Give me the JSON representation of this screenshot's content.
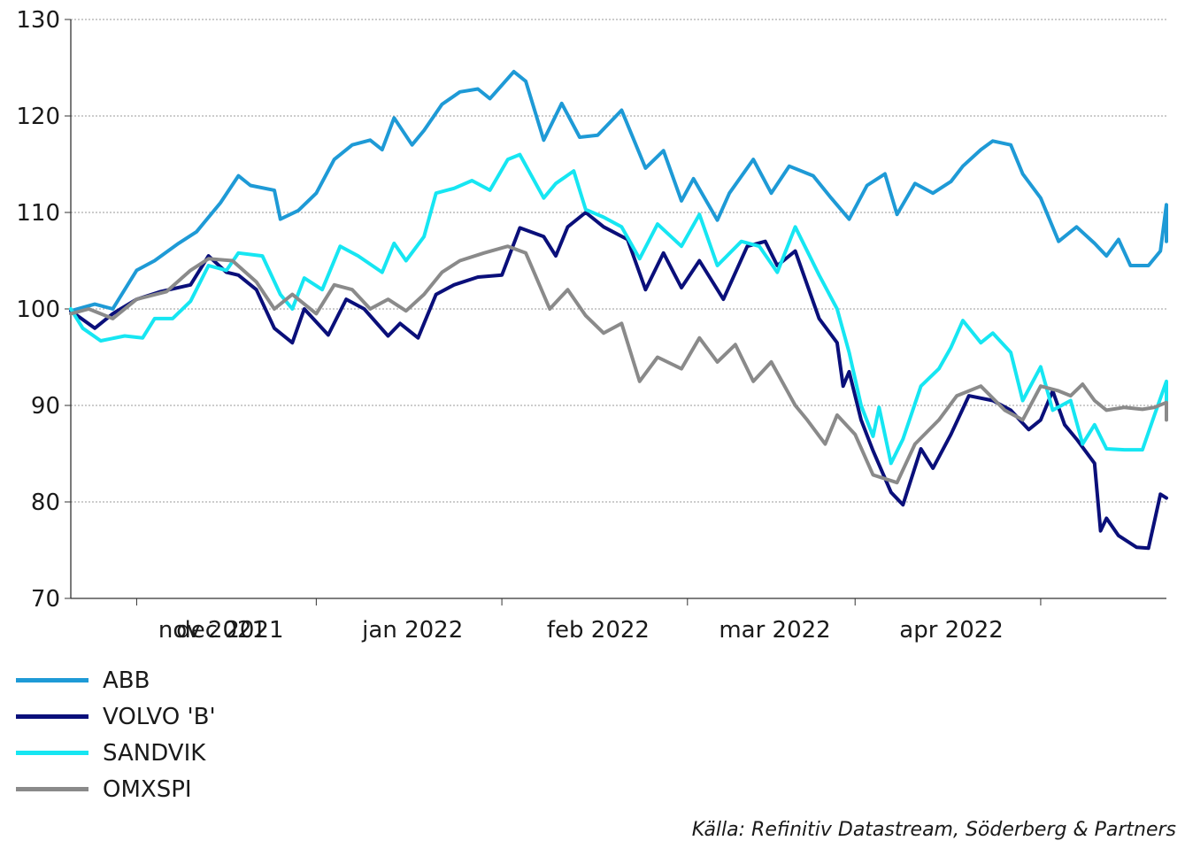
{
  "chart_data": {
    "type": "line",
    "ylim": [
      70,
      130
    ],
    "yticks": [
      "70",
      "80",
      "90",
      "100",
      "110",
      "120",
      "130"
    ],
    "month_labels": [
      "nov 2021",
      "dec 2021",
      "jan 2022",
      "feb 2022",
      "mar 2022",
      "apr 2022"
    ],
    "grid": "horizontal, dotted",
    "legend": "bottom-left",
    "x_start": "2021-10-21",
    "x_end": "2022-04-22",
    "series": [
      {
        "name": "ABB",
        "color": "#1e9ad6",
        "points": [
          [
            "2021-10-21",
            99.8
          ],
          [
            "2021-10-25",
            100.5
          ],
          [
            "2021-10-28",
            100.0
          ],
          [
            "2021-11-01",
            104.0
          ],
          [
            "2021-11-04",
            105.0
          ],
          [
            "2021-11-08",
            106.8
          ],
          [
            "2021-11-11",
            108.0
          ],
          [
            "2021-11-15",
            111.0
          ],
          [
            "2021-11-18",
            113.8
          ],
          [
            "2021-11-20",
            112.8
          ],
          [
            "2021-11-24",
            112.3
          ],
          [
            "2021-11-25",
            109.3
          ],
          [
            "2021-11-28",
            110.2
          ],
          [
            "2021-12-01",
            112.0
          ],
          [
            "2021-12-04",
            115.5
          ],
          [
            "2021-12-07",
            117.0
          ],
          [
            "2021-12-10",
            117.5
          ],
          [
            "2021-12-12",
            116.5
          ],
          [
            "2021-12-14",
            119.8
          ],
          [
            "2021-12-17",
            117.0
          ],
          [
            "2021-12-19",
            118.5
          ],
          [
            "2021-12-22",
            121.2
          ],
          [
            "2021-12-25",
            122.5
          ],
          [
            "2021-12-28",
            122.8
          ],
          [
            "2021-12-30",
            121.8
          ],
          [
            "2022-01-03",
            124.6
          ],
          [
            "2022-01-05",
            123.6
          ],
          [
            "2022-01-08",
            117.5
          ],
          [
            "2022-01-11",
            121.3
          ],
          [
            "2022-01-14",
            117.8
          ],
          [
            "2022-01-17",
            118.0
          ],
          [
            "2022-01-21",
            120.6
          ],
          [
            "2022-01-25",
            114.6
          ],
          [
            "2022-01-28",
            116.4
          ],
          [
            "2022-01-31",
            111.2
          ],
          [
            "2022-02-02",
            113.5
          ],
          [
            "2022-02-06",
            109.2
          ],
          [
            "2022-02-08",
            112.0
          ],
          [
            "2022-02-12",
            115.5
          ],
          [
            "2022-02-15",
            112.0
          ],
          [
            "2022-02-18",
            114.8
          ],
          [
            "2022-02-22",
            113.8
          ],
          [
            "2022-02-25",
            111.5
          ],
          [
            "2022-02-28",
            109.3
          ],
          [
            "2022-03-03",
            112.8
          ],
          [
            "2022-03-06",
            114.0
          ],
          [
            "2022-03-08",
            109.8
          ],
          [
            "2022-03-11",
            113.0
          ],
          [
            "2022-03-14",
            112.0
          ],
          [
            "2022-03-17",
            113.2
          ],
          [
            "2022-03-19",
            114.8
          ],
          [
            "2022-03-22",
            116.5
          ],
          [
            "2022-03-24",
            117.4
          ],
          [
            "2022-03-27",
            117.0
          ],
          [
            "2022-03-29",
            114.0
          ],
          [
            "2022-04-01",
            111.5
          ],
          [
            "2022-04-04",
            107.0
          ],
          [
            "2022-04-07",
            108.5
          ],
          [
            "2022-04-10",
            106.8
          ],
          [
            "2022-04-12",
            105.5
          ],
          [
            "2022-04-14",
            107.2
          ],
          [
            "2022-04-16",
            104.5
          ],
          [
            "2022-04-19",
            104.5
          ],
          [
            "2022-04-21",
            106.0
          ],
          [
            "2022-04-22",
            110.8
          ],
          [
            "2022-04-22",
            107.0
          ]
        ]
      },
      {
        "name": "VOLVO 'B'",
        "color": "#0a0f7a",
        "points": [
          [
            "2021-10-21",
            99.8
          ],
          [
            "2021-10-25",
            98.0
          ],
          [
            "2021-10-28",
            99.5
          ],
          [
            "2021-11-01",
            101.0
          ],
          [
            "2021-11-05",
            101.8
          ],
          [
            "2021-11-10",
            102.5
          ],
          [
            "2021-11-13",
            105.5
          ],
          [
            "2021-11-16",
            103.8
          ],
          [
            "2021-11-18",
            103.5
          ],
          [
            "2021-11-21",
            102.0
          ],
          [
            "2021-11-24",
            98.0
          ],
          [
            "2021-11-27",
            96.5
          ],
          [
            "2021-11-29",
            100.0
          ],
          [
            "2021-12-03",
            97.3
          ],
          [
            "2021-12-06",
            101.0
          ],
          [
            "2021-12-09",
            100.0
          ],
          [
            "2021-12-13",
            97.2
          ],
          [
            "2021-12-15",
            98.5
          ],
          [
            "2021-12-18",
            97.0
          ],
          [
            "2021-12-21",
            101.5
          ],
          [
            "2021-12-24",
            102.5
          ],
          [
            "2021-12-28",
            103.3
          ],
          [
            "2022-01-01",
            103.5
          ],
          [
            "2022-01-04",
            108.4
          ],
          [
            "2022-01-08",
            107.5
          ],
          [
            "2022-01-10",
            105.5
          ],
          [
            "2022-01-12",
            108.5
          ],
          [
            "2022-01-15",
            110.0
          ],
          [
            "2022-01-18",
            108.5
          ],
          [
            "2022-01-22",
            107.2
          ],
          [
            "2022-01-25",
            102.0
          ],
          [
            "2022-01-28",
            105.8
          ],
          [
            "2022-01-31",
            102.2
          ],
          [
            "2022-02-03",
            105.0
          ],
          [
            "2022-02-07",
            101.0
          ],
          [
            "2022-02-11",
            106.5
          ],
          [
            "2022-02-14",
            107.0
          ],
          [
            "2022-02-16",
            104.5
          ],
          [
            "2022-02-19",
            106.0
          ],
          [
            "2022-02-23",
            99.0
          ],
          [
            "2022-02-26",
            96.5
          ],
          [
            "2022-02-27",
            92.0
          ],
          [
            "2022-02-28",
            93.5
          ],
          [
            "2022-03-02",
            88.5
          ],
          [
            "2022-03-04",
            85.3
          ],
          [
            "2022-03-07",
            81.0
          ],
          [
            "2022-03-09",
            79.7
          ],
          [
            "2022-03-12",
            85.5
          ],
          [
            "2022-03-14",
            83.5
          ],
          [
            "2022-03-17",
            87.0
          ],
          [
            "2022-03-20",
            91.0
          ],
          [
            "2022-03-24",
            90.5
          ],
          [
            "2022-03-27",
            89.5
          ],
          [
            "2022-03-30",
            87.5
          ],
          [
            "2022-04-01",
            88.5
          ],
          [
            "2022-04-03",
            91.5
          ],
          [
            "2022-04-05",
            88.0
          ],
          [
            "2022-04-07",
            86.5
          ],
          [
            "2022-04-10",
            84.0
          ],
          [
            "2022-04-11",
            77.0
          ],
          [
            "2022-04-12",
            78.3
          ],
          [
            "2022-04-14",
            76.5
          ],
          [
            "2022-04-17",
            75.3
          ],
          [
            "2022-04-19",
            75.2
          ],
          [
            "2022-04-20",
            78.0
          ],
          [
            "2022-04-21",
            80.8
          ],
          [
            "2022-04-22",
            80.4
          ]
        ]
      },
      {
        "name": "SANDVIK",
        "color": "#16e6f2",
        "points": [
          [
            "2021-10-21",
            100.0
          ],
          [
            "2021-10-23",
            98.0
          ],
          [
            "2021-10-26",
            96.7
          ],
          [
            "2021-10-30",
            97.2
          ],
          [
            "2021-11-02",
            97.0
          ],
          [
            "2021-11-04",
            99.0
          ],
          [
            "2021-11-07",
            99.0
          ],
          [
            "2021-11-10",
            100.8
          ],
          [
            "2021-11-13",
            104.5
          ],
          [
            "2021-11-16",
            104.0
          ],
          [
            "2021-11-18",
            105.8
          ],
          [
            "2021-11-22",
            105.5
          ],
          [
            "2021-11-25",
            101.5
          ],
          [
            "2021-11-27",
            100.0
          ],
          [
            "2021-11-29",
            103.2
          ],
          [
            "2021-12-02",
            102.0
          ],
          [
            "2021-12-05",
            106.5
          ],
          [
            "2021-12-08",
            105.5
          ],
          [
            "2021-12-12",
            103.8
          ],
          [
            "2021-12-14",
            106.8
          ],
          [
            "2021-12-16",
            105.0
          ],
          [
            "2021-12-19",
            107.5
          ],
          [
            "2021-12-21",
            112.0
          ],
          [
            "2021-12-24",
            112.5
          ],
          [
            "2021-12-27",
            113.3
          ],
          [
            "2021-12-30",
            112.3
          ],
          [
            "2022-01-02",
            115.5
          ],
          [
            "2022-01-04",
            116.0
          ],
          [
            "2022-01-08",
            111.5
          ],
          [
            "2022-01-10",
            113.0
          ],
          [
            "2022-01-13",
            114.3
          ],
          [
            "2022-01-15",
            110.3
          ],
          [
            "2022-01-18",
            109.5
          ],
          [
            "2022-01-21",
            108.5
          ],
          [
            "2022-01-24",
            105.2
          ],
          [
            "2022-01-27",
            108.8
          ],
          [
            "2022-01-31",
            106.5
          ],
          [
            "2022-02-03",
            109.8
          ],
          [
            "2022-02-06",
            104.5
          ],
          [
            "2022-02-10",
            107.0
          ],
          [
            "2022-02-13",
            106.5
          ],
          [
            "2022-02-16",
            103.8
          ],
          [
            "2022-02-19",
            108.5
          ],
          [
            "2022-02-23",
            103.5
          ],
          [
            "2022-02-26",
            100.0
          ],
          [
            "2022-02-28",
            95.5
          ],
          [
            "2022-03-02",
            90.0
          ],
          [
            "2022-03-04",
            86.8
          ],
          [
            "2022-03-05",
            89.8
          ],
          [
            "2022-03-07",
            84.0
          ],
          [
            "2022-03-09",
            86.5
          ],
          [
            "2022-03-12",
            92.0
          ],
          [
            "2022-03-15",
            93.8
          ],
          [
            "2022-03-17",
            96.0
          ],
          [
            "2022-03-19",
            98.8
          ],
          [
            "2022-03-22",
            96.5
          ],
          [
            "2022-03-24",
            97.5
          ],
          [
            "2022-03-27",
            95.5
          ],
          [
            "2022-03-29",
            90.5
          ],
          [
            "2022-04-01",
            94.0
          ],
          [
            "2022-04-03",
            89.5
          ],
          [
            "2022-04-06",
            90.5
          ],
          [
            "2022-04-08",
            86.0
          ],
          [
            "2022-04-10",
            88.0
          ],
          [
            "2022-04-12",
            85.5
          ],
          [
            "2022-04-15",
            85.4
          ],
          [
            "2022-04-18",
            85.4
          ],
          [
            "2022-04-20",
            89.0
          ],
          [
            "2022-04-22",
            92.5
          ],
          [
            "2022-04-22",
            90.0
          ]
        ]
      },
      {
        "name": "OMXSPI",
        "color": "#8a8a8a",
        "points": [
          [
            "2021-10-21",
            99.5
          ],
          [
            "2021-10-24",
            100.0
          ],
          [
            "2021-10-28",
            99.0
          ],
          [
            "2021-11-01",
            101.0
          ],
          [
            "2021-11-06",
            101.8
          ],
          [
            "2021-11-10",
            104.0
          ],
          [
            "2021-11-13",
            105.2
          ],
          [
            "2021-11-17",
            105.0
          ],
          [
            "2021-11-21",
            102.8
          ],
          [
            "2021-11-24",
            100.0
          ],
          [
            "2021-11-27",
            101.5
          ],
          [
            "2021-12-01",
            99.5
          ],
          [
            "2021-12-04",
            102.5
          ],
          [
            "2021-12-07",
            102.0
          ],
          [
            "2021-12-10",
            100.0
          ],
          [
            "2021-12-13",
            101.0
          ],
          [
            "2021-12-16",
            99.8
          ],
          [
            "2021-12-19",
            101.5
          ],
          [
            "2021-12-22",
            103.8
          ],
          [
            "2021-12-25",
            105.0
          ],
          [
            "2021-12-29",
            105.8
          ],
          [
            "2022-01-02",
            106.5
          ],
          [
            "2022-01-05",
            105.8
          ],
          [
            "2022-01-09",
            100.0
          ],
          [
            "2022-01-12",
            102.0
          ],
          [
            "2022-01-15",
            99.3
          ],
          [
            "2022-01-18",
            97.5
          ],
          [
            "2022-01-21",
            98.5
          ],
          [
            "2022-01-24",
            92.5
          ],
          [
            "2022-01-27",
            95.0
          ],
          [
            "2022-01-31",
            93.8
          ],
          [
            "2022-02-03",
            97.0
          ],
          [
            "2022-02-06",
            94.5
          ],
          [
            "2022-02-09",
            96.3
          ],
          [
            "2022-02-12",
            92.5
          ],
          [
            "2022-02-15",
            94.5
          ],
          [
            "2022-02-19",
            90.0
          ],
          [
            "2022-02-21",
            88.5
          ],
          [
            "2022-02-24",
            86.0
          ],
          [
            "2022-02-26",
            89.0
          ],
          [
            "2022-03-01",
            87.0
          ],
          [
            "2022-03-04",
            82.8
          ],
          [
            "2022-03-08",
            82.0
          ],
          [
            "2022-03-11",
            86.0
          ],
          [
            "2022-03-15",
            88.5
          ],
          [
            "2022-03-18",
            91.0
          ],
          [
            "2022-03-22",
            92.0
          ],
          [
            "2022-03-26",
            89.5
          ],
          [
            "2022-03-29",
            88.5
          ],
          [
            "2022-04-01",
            92.0
          ],
          [
            "2022-04-04",
            91.5
          ],
          [
            "2022-04-06",
            91.0
          ],
          [
            "2022-04-08",
            92.2
          ],
          [
            "2022-04-10",
            90.5
          ],
          [
            "2022-04-12",
            89.5
          ],
          [
            "2022-04-15",
            89.8
          ],
          [
            "2022-04-18",
            89.6
          ],
          [
            "2022-04-20",
            89.8
          ],
          [
            "2022-04-22",
            90.3
          ],
          [
            "2022-04-22",
            88.5
          ]
        ]
      }
    ]
  },
  "source_label": "Källa: Refinitiv Datastream, Söderberg & Partners"
}
